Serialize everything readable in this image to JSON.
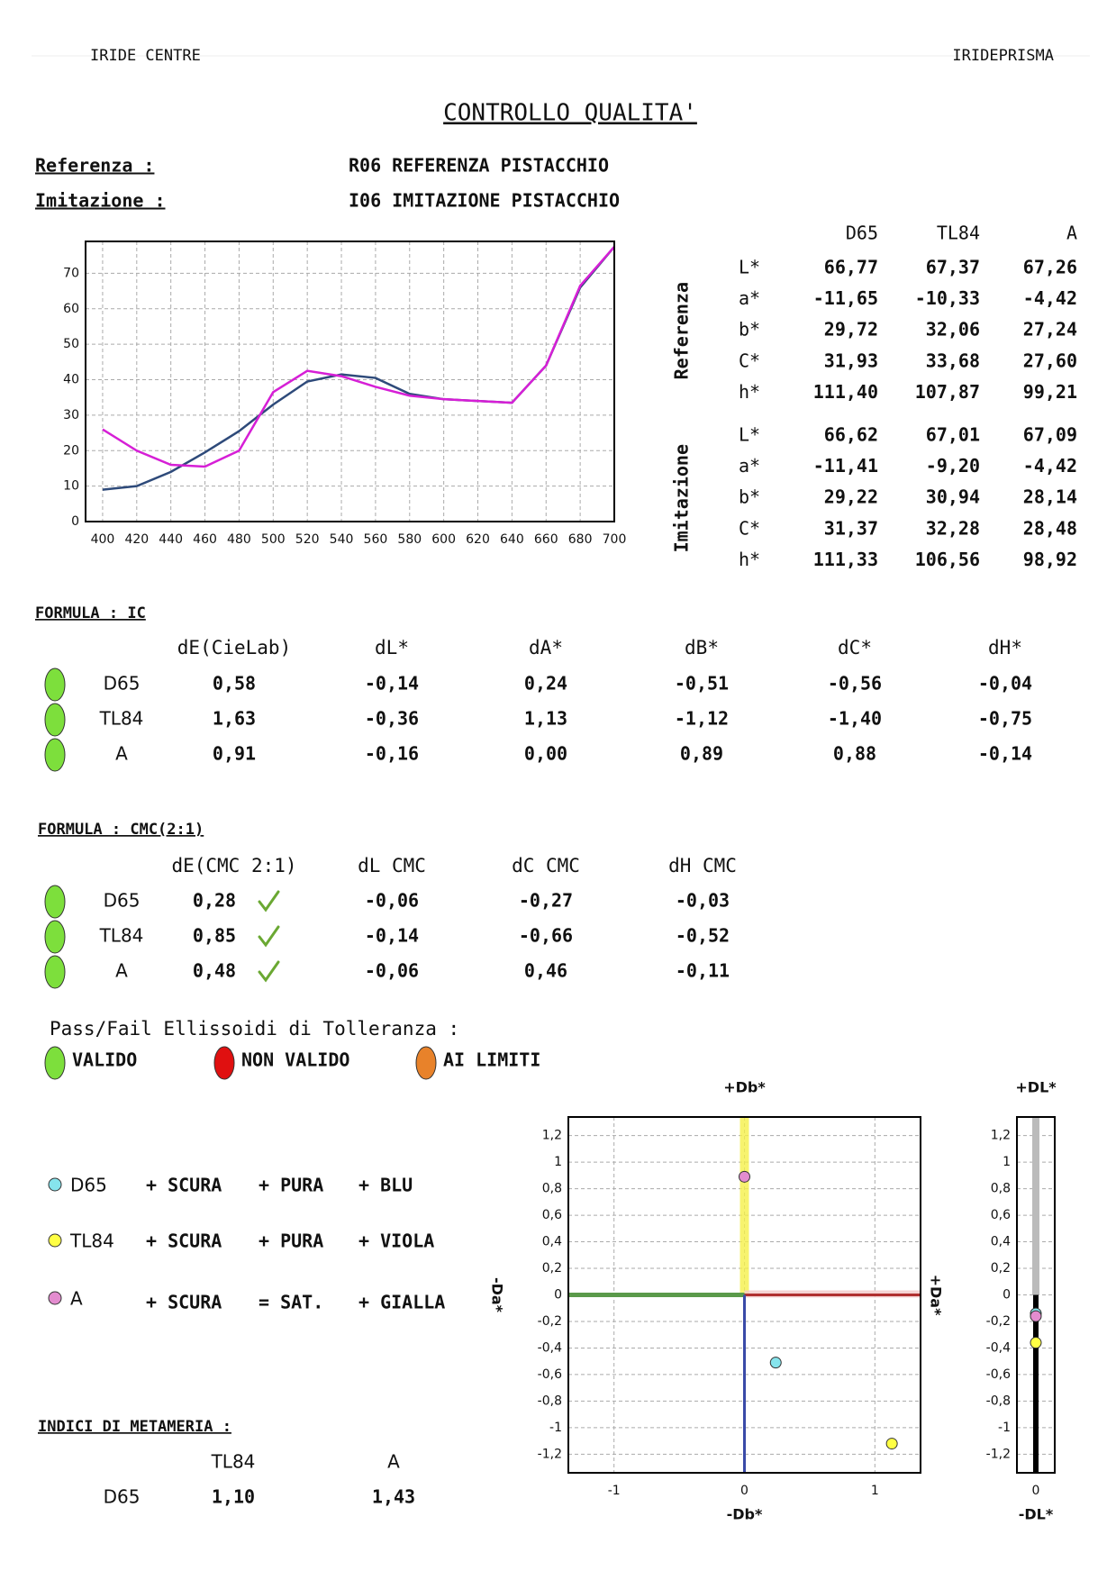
{
  "header": {
    "left": "IRIDE CENTRE",
    "right": "IRIDEPRISMA",
    "title": "CONTROLLO QUALITA'"
  },
  "samples": [
    {
      "label": "Referenza :",
      "value": "R06 REFERENZA PISTACCHIO",
      "color": "#1c1c80"
    },
    {
      "label": "Imitazione :",
      "value": "I06 IMITAZIONE PISTACCHIO",
      "color": "#cc22cc"
    }
  ],
  "colorimetry": {
    "columns": [
      "D65",
      "TL84",
      "A"
    ],
    "groups": [
      {
        "name": "Referenza",
        "color": "#2a2a8a",
        "rows": [
          {
            "label": "L*",
            "values": [
              "66,77",
              "67,37",
              "67,26"
            ]
          },
          {
            "label": "a*",
            "values": [
              "-11,65",
              "-10,33",
              "-4,42"
            ]
          },
          {
            "label": "b*",
            "values": [
              "29,72",
              "32,06",
              "27,24"
            ]
          },
          {
            "label": "C*",
            "values": [
              "31,93",
              "33,68",
              "27,60"
            ]
          },
          {
            "label": "h*",
            "values": [
              "111,40",
              "107,87",
              "99,21"
            ]
          }
        ]
      },
      {
        "name": "Imitazione",
        "color": "#cc22cc",
        "rows": [
          {
            "label": "L*",
            "values": [
              "66,62",
              "67,01",
              "67,09"
            ]
          },
          {
            "label": "a*",
            "values": [
              "-11,41",
              "-9,20",
              "-4,42"
            ]
          },
          {
            "label": "b*",
            "values": [
              "29,22",
              "30,94",
              "28,14"
            ]
          },
          {
            "label": "C*",
            "values": [
              "31,37",
              "32,28",
              "28,48"
            ]
          },
          {
            "label": "h*",
            "values": [
              "111,33",
              "106,56",
              "98,92"
            ]
          }
        ]
      }
    ]
  },
  "formula_ic": {
    "title": "FORMULA  : IC",
    "columns": [
      "dE(CieLab)",
      "dL*",
      "dA*",
      "dB*",
      "dC*",
      "dH*"
    ],
    "rows": [
      {
        "illuminant": "D65",
        "status": "#7ddf3c",
        "values": [
          "0,58",
          "-0,14",
          "0,24",
          "-0,51",
          "-0,56",
          "-0,04"
        ]
      },
      {
        "illuminant": "TL84",
        "status": "#7ddf3c",
        "values": [
          "1,63",
          "-0,36",
          "1,13",
          "-1,12",
          "-1,40",
          "-0,75"
        ]
      },
      {
        "illuminant": "A",
        "status": "#7ddf3c",
        "values": [
          "0,91",
          "-0,16",
          "0,00",
          "0,89",
          "0,88",
          "-0,14"
        ]
      }
    ]
  },
  "formula_cmc": {
    "title": "FORMULA  : CMC(2:1)",
    "columns": [
      "dE(CMC 2:1)",
      "dL CMC",
      "dC CMC",
      "dH CMC"
    ],
    "rows": [
      {
        "illuminant": "D65",
        "status": "#7ddf3c",
        "values": [
          "0,28",
          "-0,06",
          "-0,27",
          "-0,03"
        ]
      },
      {
        "illuminant": "TL84",
        "status": "#7ddf3c",
        "values": [
          "0,85",
          "-0,14",
          "-0,66",
          "-0,52"
        ]
      },
      {
        "illuminant": "A",
        "status": "#7ddf3c",
        "values": [
          "0,48",
          "-0,06",
          "0,46",
          "-0,11"
        ]
      }
    ]
  },
  "tolerance": {
    "title": "Pass/Fail Ellissoidi di Tolleranza :",
    "legend": [
      {
        "label": "VALIDO",
        "color": "#7ddf3c"
      },
      {
        "label": "NON VALIDO",
        "color": "#e01010"
      },
      {
        "label": "AI LIMITI",
        "color": "#e8822a"
      }
    ]
  },
  "deviations": [
    {
      "illuminant": "D65",
      "color": "#86e4ec",
      "terms": [
        "+ SCURA",
        "+ PURA",
        "+ BLU"
      ]
    },
    {
      "illuminant": "TL84",
      "color": "#ffff44",
      "terms": [
        "+ SCURA",
        "+ PURA",
        "+ VIOLA"
      ]
    },
    {
      "illuminant": "A",
      "color": "#e38ccf",
      "terms": [
        "+ SCURA",
        "= SAT.",
        "+ GIALLA"
      ]
    }
  ],
  "metameria": {
    "title": "INDICI DI METAMERIA :",
    "columns": [
      "TL84",
      "A"
    ],
    "rows": [
      {
        "illuminant": "D65",
        "values": [
          "1,10",
          "1,43"
        ]
      }
    ]
  },
  "charts": [
    {
      "type": "line",
      "x": [
        400,
        420,
        440,
        460,
        480,
        500,
        520,
        540,
        560,
        580,
        600,
        620,
        640,
        660,
        680,
        700
      ],
      "xlim": [
        390,
        700
      ],
      "ylim": [
        0,
        79
      ],
      "xticks": [
        400,
        420,
        440,
        460,
        480,
        500,
        520,
        540,
        560,
        580,
        600,
        620,
        640,
        660,
        680,
        700
      ],
      "yticks": [
        0,
        10,
        20,
        30,
        40,
        50,
        60,
        70
      ],
      "grid": true,
      "series": [
        {
          "color": "#2e4a7a",
          "values": [
            9,
            10,
            14,
            19.5,
            25.5,
            33,
            39.5,
            41.5,
            40.5,
            36,
            34.5,
            34,
            33.5,
            44,
            66,
            77.5
          ]
        },
        {
          "color": "#d61fd6",
          "values": [
            26,
            20,
            16,
            15.5,
            20,
            36.5,
            42.5,
            41,
            38,
            35.5,
            34.5,
            34,
            33.5,
            44,
            66.5,
            77.5
          ]
        }
      ]
    },
    {
      "type": "scatter",
      "labels": {
        "top": "+Db*",
        "bottom": "-Db*",
        "right": "+Da*",
        "left": "-Da*"
      },
      "xlim": [
        -1.35,
        1.35
      ],
      "ylim": [
        -1.34,
        1.34
      ],
      "xticks": [
        -1,
        0,
        1
      ],
      "yticks": [
        {
          "value": 1.2,
          "label": "1,2"
        },
        1,
        {
          "value": 0.8,
          "label": "0,8"
        },
        {
          "value": 0.6,
          "label": "0,6"
        },
        {
          "value": 0.4,
          "label": "0,4"
        },
        {
          "value": 0.2,
          "label": "0,2"
        },
        0,
        {
          "value": -0.2,
          "label": "-0,2"
        },
        {
          "value": -0.4,
          "label": "-0,4"
        },
        {
          "value": -0.6,
          "label": "-0,6"
        },
        {
          "value": -0.8,
          "label": "-0,8"
        },
        -1,
        {
          "value": -1.2,
          "label": "-1,2"
        }
      ],
      "grid": true,
      "x": [
        0.24,
        1.13,
        0.0
      ],
      "values": [
        -0.51,
        -1.12,
        0.89
      ],
      "colors": [
        "#86e4ec",
        "#ffff44",
        "#e38ccf"
      ]
    },
    {
      "type": "scatter",
      "labels": {
        "top": "+DL*",
        "bottom": "-DL*"
      },
      "xlim": [
        -1,
        1
      ],
      "ylim": [
        -1.34,
        1.34
      ],
      "xticks": [
        0
      ],
      "yticks": [
        {
          "value": 1.2,
          "label": "1,2"
        },
        1,
        {
          "value": 0.8,
          "label": "0,8"
        },
        {
          "value": 0.6,
          "label": "0,6"
        },
        {
          "value": 0.4,
          "label": "0,4"
        },
        {
          "value": 0.2,
          "label": "0,2"
        },
        0,
        {
          "value": -0.2,
          "label": "-0,2"
        },
        {
          "value": -0.4,
          "label": "-0,4"
        },
        {
          "value": -0.6,
          "label": "-0,6"
        },
        {
          "value": -0.8,
          "label": "-0,8"
        },
        -1,
        {
          "value": -1.2,
          "label": "-1,2"
        }
      ],
      "grid": true,
      "x": [
        0,
        0,
        0
      ],
      "values": [
        -0.14,
        -0.36,
        -0.16
      ],
      "colors": [
        "#86e4ec",
        "#ffff44",
        "#e38ccf"
      ]
    }
  ]
}
